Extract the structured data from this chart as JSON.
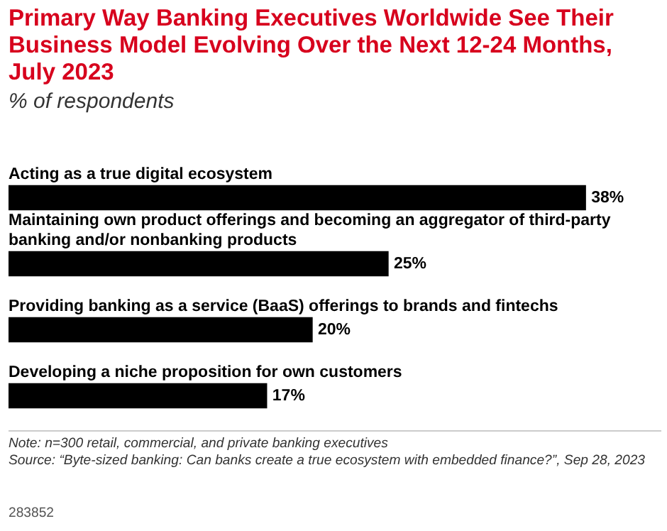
{
  "chart_data": {
    "type": "bar",
    "orientation": "horizontal",
    "title": "Primary Way Banking Executives Worldwide See Their Business Model Evolving Over the Next 12-24 Months, July 2023",
    "subtitle": "% of respondents",
    "categories": [
      "Acting as a true digital ecosystem",
      "Maintaining own product offerings and becoming an aggregator of third-party banking and/or nonbanking products",
      "Providing banking as a service (BaaS) offerings to brands and fintechs",
      "Developing a niche proposition for own customers"
    ],
    "values": [
      38,
      25,
      20,
      17
    ],
    "color": "#000000",
    "value_labels": [
      "38%",
      "25%",
      "20%",
      "17%"
    ],
    "annotations": [
      "Note: n=300 retail, commercial, and private banking executives",
      "Source: “Byte-sized banking: Can banks create a true ecosystem with embedded finance?”, Sep 28, 2023",
      "283852"
    ]
  }
}
